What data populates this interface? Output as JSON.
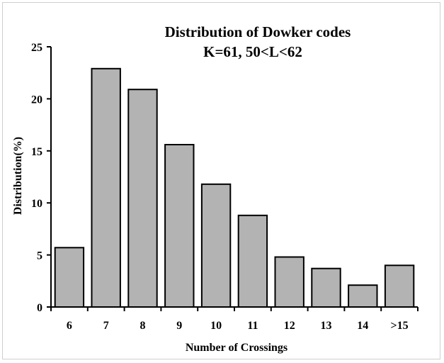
{
  "chart_data": {
    "type": "bar",
    "title_line1": "Distribution of Dowker codes",
    "title_line2": "K=61, 50<L<62",
    "xlabel": "Number of Crossings",
    "ylabel": "Distribution(%)",
    "categories": [
      "6",
      "7",
      "8",
      "9",
      "10",
      "11",
      "12",
      "13",
      "14",
      ">15"
    ],
    "values": [
      5.7,
      22.9,
      20.9,
      15.6,
      11.8,
      8.8,
      4.8,
      3.7,
      2.1,
      4.0
    ],
    "yticks": [
      "0",
      "5",
      "10",
      "15",
      "20",
      "25"
    ],
    "ylim": [
      0,
      25
    ],
    "grid": false,
    "legend": "none",
    "bar_color": "#b3b3b3",
    "bar_edge_color": "#000000"
  }
}
